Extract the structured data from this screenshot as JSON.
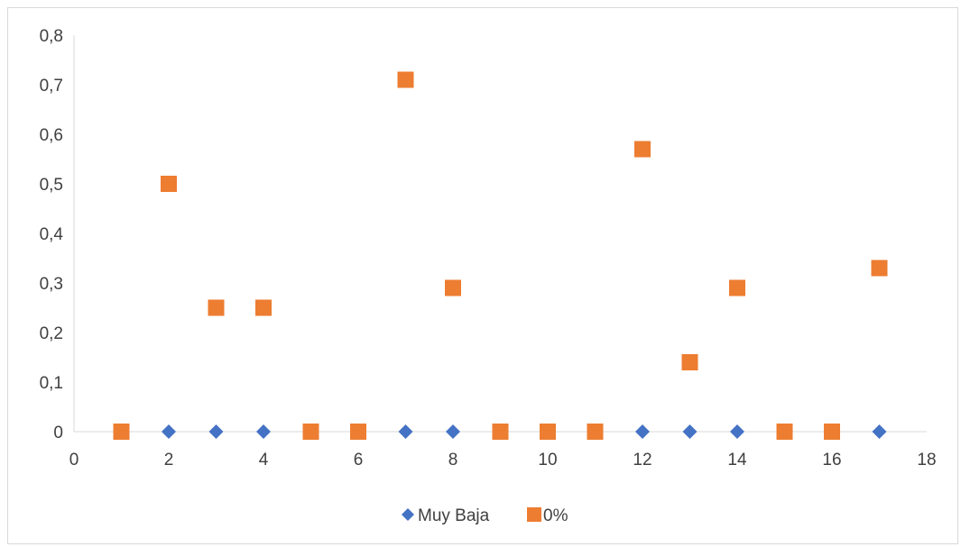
{
  "chart_data": {
    "type": "scatter",
    "title": "",
    "xlabel": "",
    "ylabel": "",
    "xlim": [
      0,
      18
    ],
    "ylim": [
      0,
      0.8
    ],
    "x_ticks": [
      0,
      2,
      4,
      6,
      8,
      10,
      12,
      14,
      16,
      18
    ],
    "y_ticks": [
      0,
      0.1,
      0.2,
      0.3,
      0.4,
      0.5,
      0.6,
      0.7,
      0.8
    ],
    "x_tick_labels": [
      "0",
      "2",
      "4",
      "6",
      "8",
      "10",
      "12",
      "14",
      "16",
      "18"
    ],
    "y_tick_labels": [
      "0",
      "0,1",
      "0,2",
      "0,3",
      "0,4",
      "0,5",
      "0,6",
      "0,7",
      "0,8"
    ],
    "grid": false,
    "legend_position": "bottom",
    "series": [
      {
        "name": "Muy Baja",
        "marker": "diamond",
        "color": "#4472c4",
        "x": [
          2,
          3,
          4,
          7,
          8,
          12,
          13,
          14,
          17
        ],
        "y": [
          0,
          0,
          0,
          0,
          0,
          0,
          0,
          0,
          0
        ]
      },
      {
        "name": "0%",
        "marker": "square",
        "color": "#ed7d31",
        "x": [
          1,
          2,
          3,
          4,
          5,
          6,
          7,
          8,
          9,
          10,
          11,
          12,
          13,
          14,
          15,
          16,
          17
        ],
        "y": [
          0,
          0.5,
          0.25,
          0.25,
          0,
          0,
          0.71,
          0.29,
          0,
          0,
          0,
          0.57,
          0.14,
          0.29,
          0,
          0,
          0.33
        ]
      }
    ]
  }
}
